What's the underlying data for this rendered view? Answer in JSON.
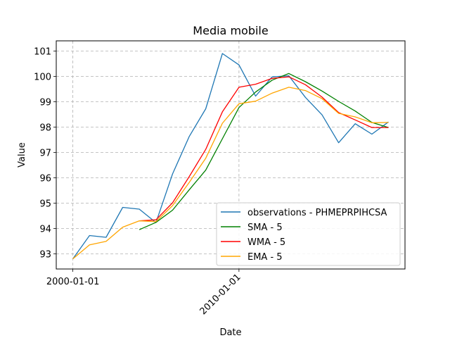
{
  "chart_data": {
    "type": "line",
    "title": "Media mobile",
    "xlabel": "Date",
    "ylabel": "Value",
    "x_ticks": [
      "2000-01-01",
      "2010-01-01"
    ],
    "y_ticks": [
      93,
      94,
      95,
      96,
      97,
      98,
      99,
      100,
      101
    ],
    "ylim": [
      92.4,
      101.4
    ],
    "xlim": [
      "1999-01-01",
      "2019-12-31"
    ],
    "grid": true,
    "legend_position": "lower-right",
    "x": [
      "2000-01-01",
      "2001-01-01",
      "2002-01-01",
      "2003-01-01",
      "2004-01-01",
      "2005-01-01",
      "2006-01-01",
      "2007-01-01",
      "2008-01-01",
      "2009-01-01",
      "2010-01-01",
      "2011-01-01",
      "2012-01-01",
      "2013-01-01",
      "2014-01-01",
      "2015-01-01",
      "2016-01-01",
      "2017-01-01",
      "2018-01-01",
      "2019-01-01"
    ],
    "series": [
      {
        "name": "observations - PHMEPRPIHCSA",
        "color": "#1f77b4",
        "values": [
          92.8,
          93.72,
          93.65,
          94.83,
          94.76,
          94.23,
          96.15,
          97.62,
          98.72,
          100.9,
          100.45,
          99.22,
          99.98,
          100.02,
          99.17,
          98.48,
          97.38,
          98.13,
          97.72,
          98.2
        ]
      },
      {
        "name": "SMA - 5",
        "color": "#008000",
        "values": [
          null,
          null,
          null,
          null,
          93.95,
          94.24,
          94.72,
          95.52,
          96.3,
          97.54,
          98.77,
          99.38,
          99.85,
          100.11,
          99.79,
          99.42,
          99.01,
          98.63,
          98.18,
          97.98
        ]
      },
      {
        "name": "WMA - 5",
        "color": "#ff0000",
        "values": [
          null,
          null,
          null,
          null,
          94.3,
          94.34,
          95.01,
          96.04,
          97.12,
          98.6,
          99.57,
          99.69,
          99.92,
          99.98,
          99.67,
          99.18,
          98.57,
          98.28,
          97.98,
          97.98
        ]
      },
      {
        "name": "EMA - 5",
        "color": "#ffa500",
        "values": [
          92.8,
          93.35,
          93.49,
          94.05,
          94.3,
          94.27,
          94.9,
          95.81,
          96.77,
          98.15,
          98.92,
          99.02,
          99.34,
          99.57,
          99.44,
          99.12,
          98.54,
          98.4,
          98.17,
          98.18
        ]
      }
    ]
  }
}
